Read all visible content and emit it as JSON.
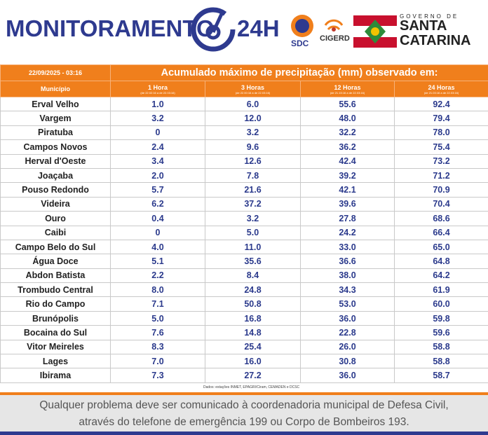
{
  "header": {
    "brand": "MONITORAMENTO",
    "brand_suffix": "24H",
    "sdc": "SDC",
    "cigerd": "CIGERD",
    "gov_top": "GOVERNO DE",
    "gov_line1": "SANTA",
    "gov_line2": "CATARINA"
  },
  "table": {
    "timestamp": "22/09/2025 - 03:16",
    "title": "Acumulado máximo de precipitação (mm) observado em:",
    "columns": [
      {
        "label": "Município"
      },
      {
        "label": "1 Hora",
        "range": "(de 22.02:16 a de 22.03:16)"
      },
      {
        "label": "3 Horas",
        "range": "(de 22.00:16 a de 22.03:16)"
      },
      {
        "label": "12 Horas",
        "range": "(de 21.15:16 a de 22.03:16)"
      },
      {
        "label": "24 Horas",
        "range": "(de 21.03:16 a de 22.03:16)"
      }
    ],
    "rows": [
      [
        "Erval Velho",
        "1.0",
        "6.0",
        "55.6",
        "92.4"
      ],
      [
        "Vargem",
        "3.2",
        "12.0",
        "48.0",
        "79.4"
      ],
      [
        "Piratuba",
        "0",
        "3.2",
        "32.2",
        "78.0"
      ],
      [
        "Campos Novos",
        "2.4",
        "9.6",
        "36.2",
        "75.4"
      ],
      [
        "Herval d'Oeste",
        "3.4",
        "12.6",
        "42.4",
        "73.2"
      ],
      [
        "Joaçaba",
        "2.0",
        "7.8",
        "39.2",
        "71.2"
      ],
      [
        "Pouso Redondo",
        "5.7",
        "21.6",
        "42.1",
        "70.9"
      ],
      [
        "Videira",
        "6.2",
        "37.2",
        "39.6",
        "70.4"
      ],
      [
        "Ouro",
        "0.4",
        "3.2",
        "27.8",
        "68.6"
      ],
      [
        "Caibi",
        "0",
        "5.0",
        "24.2",
        "66.4"
      ],
      [
        "Campo Belo do Sul",
        "4.0",
        "11.0",
        "33.0",
        "65.0"
      ],
      [
        "Água Doce",
        "5.1",
        "35.6",
        "36.6",
        "64.8"
      ],
      [
        "Abdon Batista",
        "2.2",
        "8.4",
        "38.0",
        "64.2"
      ],
      [
        "Trombudo Central",
        "8.0",
        "24.8",
        "34.3",
        "61.9"
      ],
      [
        "Rio do Campo",
        "7.1",
        "50.8",
        "53.0",
        "60.0"
      ],
      [
        "Brunópolis",
        "5.0",
        "16.8",
        "36.0",
        "59.8"
      ],
      [
        "Bocaina do Sul",
        "7.6",
        "14.8",
        "22.8",
        "59.6"
      ],
      [
        "Vitor Meireles",
        "8.3",
        "25.4",
        "26.0",
        "58.8"
      ],
      [
        "Lages",
        "7.0",
        "16.0",
        "30.8",
        "58.8"
      ],
      [
        "Ibirama",
        "7.3",
        "27.2",
        "36.0",
        "58.7"
      ]
    ],
    "source": "Dados: estações INMET, EPAGRI/Ciram, CEMADEN e DCSC"
  },
  "footer": {
    "line1": "Qualquer problema deve ser comunicado à coordenadoria municipal de Defesa Civil,",
    "line2": "através do telefone de emergência 199 ou Corpo de Bombeiros 193."
  }
}
